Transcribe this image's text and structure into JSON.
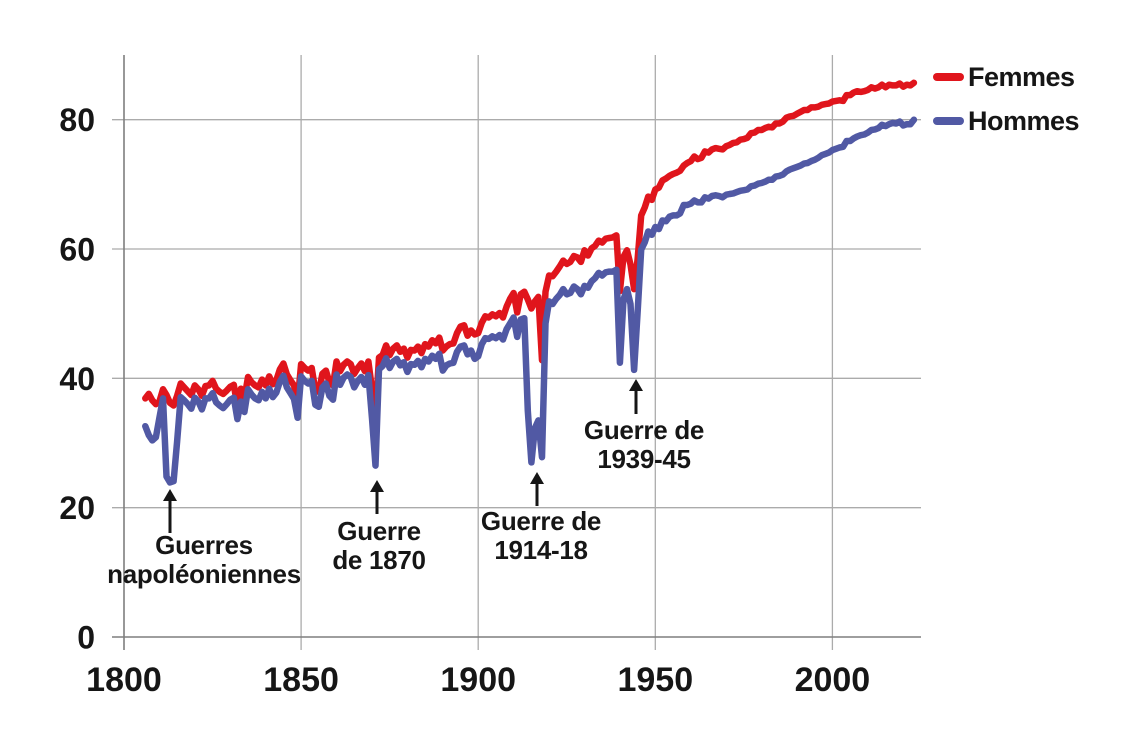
{
  "legend": {
    "items": [
      {
        "label": "Femmes",
        "color": "#e0151c"
      },
      {
        "label": "Hommes",
        "color": "#5159a4"
      }
    ]
  },
  "annotations": [
    {
      "line1": "Guerres",
      "line2": "napoléoniennes"
    },
    {
      "line1": "Guerre",
      "line2": "de 1870"
    },
    {
      "line1": "Guerre de",
      "line2": "1914-18"
    },
    {
      "line1": "Guerre de",
      "line2": "1939-45"
    }
  ],
  "colors": {
    "grid": "#ababab",
    "axis": "#7f7f7f",
    "text": "#161616",
    "background": "#ffffff",
    "femmes": "#e0151c",
    "hommes": "#5159a4"
  },
  "chart_data": {
    "type": "line",
    "title": "",
    "xlabel": "",
    "ylabel": "",
    "x_ticks": [
      1800,
      1850,
      1900,
      1950,
      2000
    ],
    "y_ticks": [
      0,
      20,
      40,
      60,
      80
    ],
    "x_range": [
      1800,
      2025
    ],
    "y_range": [
      0,
      90
    ],
    "grid": true,
    "legend_position": "top-right",
    "start_year": 1806,
    "series": [
      {
        "name": "Femmes",
        "color": "#e0151c",
        "values": [
          36.9,
          37.6,
          36.6,
          36.0,
          36.4,
          38.3,
          37.4,
          36.2,
          35.8,
          37.3,
          39.2,
          38.6,
          38.0,
          37.4,
          38.9,
          38.3,
          37.3,
          38.8,
          38.9,
          39.6,
          38.4,
          37.9,
          37.6,
          38.1,
          38.7,
          39.0,
          35.7,
          38.4,
          36.9,
          40.2,
          39.4,
          38.9,
          38.6,
          39.8,
          38.9,
          40.3,
          39.1,
          39.7,
          41.4,
          42.3,
          40.6,
          39.7,
          38.9,
          36.3,
          42.2,
          41.6,
          41.2,
          41.6,
          38.2,
          37.9,
          40.7,
          41.2,
          39.4,
          38.9,
          42.6,
          41.1,
          42.1,
          42.6,
          42.2,
          40.7,
          41.6,
          42.3,
          41.1,
          42.6,
          38.3,
          34.3,
          43.2,
          43.6,
          45.1,
          43.6,
          44.6,
          45.1,
          44.1,
          44.6,
          43.2,
          44.4,
          44.3,
          44.9,
          43.9,
          45.3,
          44.9,
          45.9,
          45.4,
          46.3,
          44.3,
          44.9,
          45.3,
          45.4,
          47.0,
          48.0,
          48.2,
          46.6,
          47.4,
          46.8,
          47.0,
          48.6,
          49.6,
          49.4,
          49.9,
          49.6,
          50.1,
          49.4,
          51.1,
          52.3,
          53.2,
          50.2,
          53.0,
          53.4,
          52.2,
          50.8,
          51.9,
          52.6,
          42.8,
          53.4,
          55.9,
          55.8,
          56.5,
          57.3,
          58.2,
          57.7,
          58.0,
          58.9,
          58.7,
          58.0,
          59.8,
          59.0,
          60.1,
          60.5,
          61.3,
          61.0,
          61.6,
          61.7,
          61.8,
          62.1,
          53.5,
          58.8,
          59.8,
          57.6,
          53.8,
          58.4,
          65.2,
          66.4,
          68.1,
          67.6,
          69.2,
          69.5,
          70.6,
          70.9,
          71.3,
          71.6,
          71.8,
          72.1,
          72.9,
          73.3,
          73.6,
          74.3,
          73.9,
          74.1,
          75.1,
          74.9,
          75.4,
          75.6,
          75.5,
          75.4,
          75.9,
          76.1,
          76.4,
          76.5,
          76.9,
          77.0,
          77.2,
          77.9,
          78.0,
          78.4,
          78.4,
          78.7,
          78.9,
          78.8,
          79.4,
          79.4,
          79.7,
          80.3,
          80.5,
          80.6,
          80.9,
          81.2,
          81.5,
          81.5,
          81.9,
          81.9,
          82.0,
          82.3,
          82.4,
          82.5,
          82.8,
          82.9,
          83.0,
          82.9,
          83.8,
          83.8,
          84.2,
          84.4,
          84.3,
          84.4,
          84.6,
          85.0,
          84.8,
          85.0,
          85.4,
          85.0,
          85.4,
          85.3,
          85.3,
          85.6,
          85.1,
          85.4,
          85.3,
          85.7
        ]
      },
      {
        "name": "Hommes",
        "color": "#5159a4",
        "values": [
          32.6,
          31.2,
          30.4,
          30.9,
          33.9,
          36.9,
          24.8,
          23.9,
          24.1,
          30.2,
          37.1,
          36.6,
          36.0,
          35.3,
          37.0,
          36.4,
          35.2,
          36.9,
          36.9,
          37.7,
          36.3,
          35.8,
          35.4,
          36.0,
          36.7,
          37.0,
          33.7,
          36.4,
          34.8,
          38.3,
          37.5,
          36.9,
          36.6,
          37.9,
          36.9,
          38.4,
          37.1,
          37.8,
          39.5,
          40.4,
          38.6,
          37.7,
          36.8,
          33.9,
          40.3,
          39.6,
          39.2,
          39.6,
          35.9,
          35.6,
          38.6,
          39.2,
          37.3,
          36.7,
          40.6,
          39.0,
          40.1,
          40.6,
          40.2,
          38.6,
          39.6,
          40.2,
          39.0,
          40.5,
          33.8,
          26.5,
          41.4,
          41.9,
          43.1,
          41.6,
          42.6,
          43.0,
          42.0,
          42.5,
          41.0,
          42.2,
          42.1,
          42.7,
          41.7,
          43.0,
          42.6,
          43.5,
          43.0,
          43.8,
          41.2,
          42.0,
          42.3,
          42.4,
          44.1,
          44.9,
          45.1,
          43.7,
          44.3,
          43.0,
          43.4,
          45.3,
          46.2,
          46.1,
          46.5,
          46.2,
          46.7,
          46.0,
          47.6,
          48.5,
          49.4,
          46.4,
          49.1,
          49.3,
          35.0,
          27.0,
          32.3,
          33.5,
          27.8,
          48.5,
          51.9,
          51.5,
          52.3,
          52.9,
          53.8,
          53.0,
          53.2,
          54.2,
          53.8,
          53.0,
          54.3,
          54.0,
          55.0,
          55.5,
          56.3,
          55.9,
          56.4,
          56.5,
          56.5,
          56.8,
          42.4,
          52.2,
          53.8,
          51.5,
          41.3,
          50.2,
          59.9,
          61.0,
          62.7,
          62.2,
          63.4,
          63.1,
          64.4,
          64.3,
          65.0,
          65.2,
          65.2,
          65.5,
          66.8,
          66.8,
          67.0,
          67.5,
          67.2,
          67.2,
          68.0,
          67.8,
          68.2,
          68.3,
          68.2,
          68.0,
          68.4,
          68.5,
          68.6,
          68.8,
          69.0,
          69.1,
          69.2,
          69.7,
          69.8,
          70.1,
          70.2,
          70.4,
          70.7,
          70.7,
          71.2,
          71.3,
          71.5,
          72.0,
          72.3,
          72.5,
          72.7,
          72.9,
          73.2,
          73.3,
          73.6,
          73.8,
          74.1,
          74.5,
          74.7,
          74.9,
          75.3,
          75.5,
          75.7,
          75.8,
          76.7,
          76.7,
          77.1,
          77.4,
          77.6,
          77.7,
          78.0,
          78.4,
          78.5,
          78.7,
          79.2,
          79.0,
          79.3,
          79.5,
          79.4,
          79.7,
          79.1,
          79.3,
          79.3,
          80.0
        ]
      }
    ]
  }
}
